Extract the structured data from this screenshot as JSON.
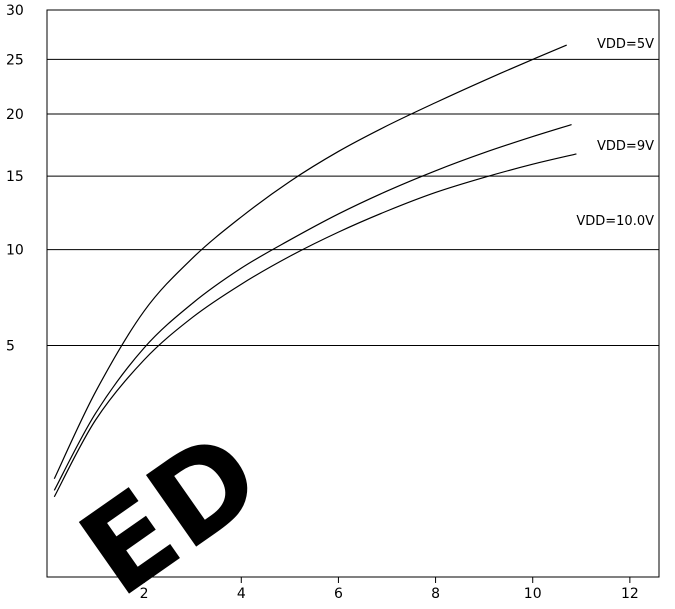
{
  "chart_data": {
    "type": "line",
    "title": "",
    "xlabel": "",
    "ylabel": "",
    "xlim": [
      0,
      12.6
    ],
    "ylim": [
      0,
      30
    ],
    "y_scale": "sqrt",
    "x_ticks": [
      "2",
      "4",
      "6",
      "8",
      "10",
      "12"
    ],
    "y_ticks": [
      "5",
      "10",
      "15",
      "20",
      "25",
      "30"
    ],
    "grid": "horizontal",
    "series": [
      {
        "name": "VDD=5V",
        "points": [
          [
            0.15,
            0.9
          ],
          [
            1,
            3.2
          ],
          [
            2,
            6.6
          ],
          [
            3,
            9.5
          ],
          [
            4,
            12.1
          ],
          [
            5,
            14.6
          ],
          [
            6,
            16.9
          ],
          [
            7,
            19.0
          ],
          [
            8,
            21.0
          ],
          [
            9,
            23.0
          ],
          [
            10,
            25.0
          ],
          [
            10.7,
            26.4
          ]
        ]
      },
      {
        "name": "VDD=9V",
        "points": [
          [
            0.15,
            0.7
          ],
          [
            1,
            2.5
          ],
          [
            2,
            4.9
          ],
          [
            3,
            7.0
          ],
          [
            4,
            8.9
          ],
          [
            5,
            10.6
          ],
          [
            6,
            12.3
          ],
          [
            7,
            13.9
          ],
          [
            8,
            15.4
          ],
          [
            9,
            16.8
          ],
          [
            10,
            18.1
          ],
          [
            10.8,
            19.1
          ]
        ]
      },
      {
        "name": "VDD=10.0V",
        "points": [
          [
            0.15,
            0.6
          ],
          [
            1,
            2.3
          ],
          [
            2,
            4.4
          ],
          [
            3,
            6.3
          ],
          [
            4,
            8.0
          ],
          [
            5,
            9.6
          ],
          [
            6,
            11.1
          ],
          [
            7,
            12.5
          ],
          [
            8,
            13.8
          ],
          [
            9,
            14.9
          ],
          [
            10,
            15.9
          ],
          [
            10.9,
            16.7
          ]
        ]
      }
    ],
    "watermark": "ED",
    "colors": {
      "line": "#000000",
      "grid": "#000000",
      "watermark": "#ff0000"
    }
  }
}
